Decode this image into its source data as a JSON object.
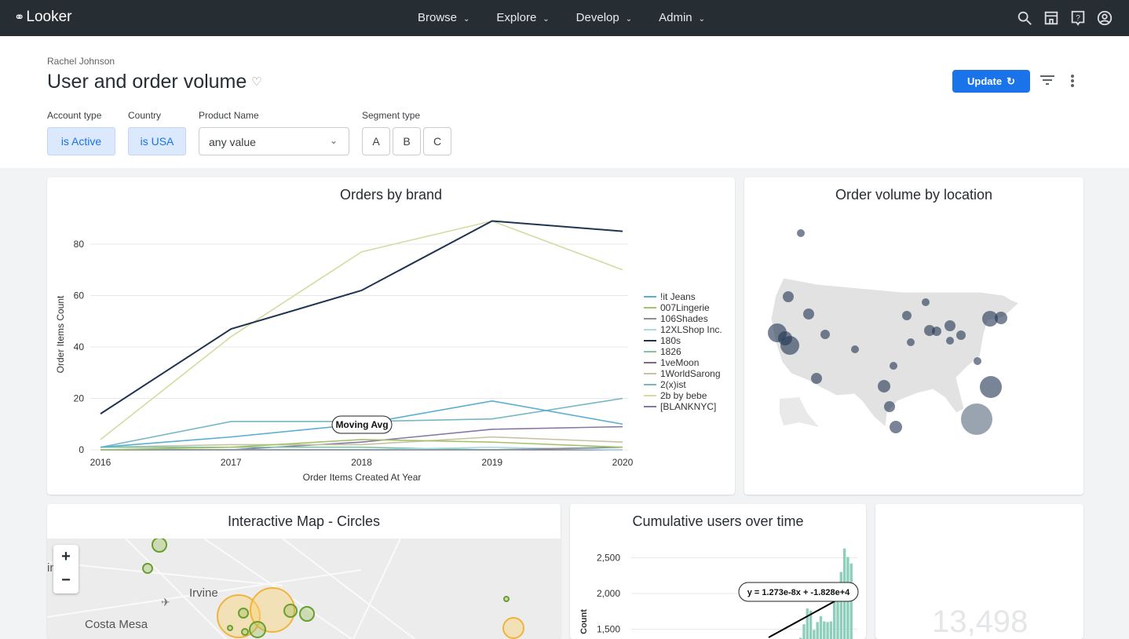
{
  "topbar": {
    "logo": "Looker",
    "nav": [
      {
        "label": "Browse"
      },
      {
        "label": "Explore"
      },
      {
        "label": "Develop"
      },
      {
        "label": "Admin"
      }
    ],
    "icons": [
      "search-icon",
      "marketplace-icon",
      "help-icon",
      "account-icon"
    ]
  },
  "header": {
    "owner": "Rachel Johnson",
    "title": "User and order volume",
    "update_label": "Update"
  },
  "filters": {
    "account_type": {
      "label": "Account type",
      "value": "is Active"
    },
    "country": {
      "label": "Country",
      "value": "is USA"
    },
    "product_name": {
      "label": "Product Name",
      "value": "any value"
    },
    "segment_type": {
      "label": "Segment type",
      "options": [
        "A",
        "B",
        "C"
      ]
    }
  },
  "tiles": {
    "orders_by_brand": {
      "title": "Orders by brand",
      "annotation": "Moving Avg"
    },
    "order_volume_by_location": {
      "title": "Order volume by location"
    },
    "interactive_map": {
      "title": "Interactive Map - Circles",
      "labels": [
        "Irvine",
        "Costa Mesa",
        "in    ley"
      ]
    },
    "cumulative_users": {
      "title": "Cumulative users over time",
      "trendline": "y = 1.273e-8x + -1.828e+4"
    },
    "single_value": {
      "value": "13,498"
    }
  },
  "chart_data": [
    {
      "type": "line",
      "title": "Orders by brand",
      "xlabel": "Order Items Created At Year",
      "ylabel": "Order Items Count",
      "categories": [
        "2016",
        "2017",
        "2018",
        "2019",
        "2020"
      ],
      "ylim": [
        0,
        90
      ],
      "yticks": [
        0,
        20,
        40,
        60,
        80
      ],
      "grid": true,
      "legend": "right",
      "series": [
        {
          "name": "!it Jeans",
          "color": "#5aaed3",
          "values": [
            1,
            5,
            10,
            19,
            10
          ]
        },
        {
          "name": "007Lingerie",
          "color": "#a5c26b",
          "values": [
            0,
            1,
            4,
            3,
            1
          ]
        },
        {
          "name": "106Shades",
          "color": "#8a8f96",
          "values": [
            0,
            0,
            0,
            0,
            1
          ]
        },
        {
          "name": "12XLShop Inc.",
          "color": "#a8dde6",
          "values": [
            0,
            0,
            0,
            1,
            0
          ]
        },
        {
          "name": "180s",
          "color": "#1f3450",
          "values": [
            14,
            47,
            62,
            89,
            85
          ]
        },
        {
          "name": "1826",
          "color": "#7fc4a5",
          "values": [
            1,
            1,
            1,
            0,
            1
          ]
        },
        {
          "name": "1veMoon",
          "color": "#7b6b86",
          "values": [
            0,
            0,
            0,
            0,
            0
          ]
        },
        {
          "name": "1WorldSarong",
          "color": "#c6c2a3",
          "values": [
            1,
            2,
            2,
            5,
            3
          ]
        },
        {
          "name": "2(x)ist",
          "color": "#76b7c6",
          "values": [
            1,
            11,
            11,
            12,
            20
          ]
        },
        {
          "name": "2b by bebe",
          "color": "#d4dba0",
          "values": [
            4,
            44,
            77,
            89,
            70
          ]
        },
        {
          "name": "[BLANKNYC]",
          "color": "#8577a8",
          "values": [
            0,
            0,
            3,
            8,
            9
          ]
        }
      ]
    },
    {
      "type": "bar",
      "title": "Cumulative users over time",
      "ylabel": "Count",
      "yticks": [
        "1,500",
        "2,000",
        "2,500"
      ],
      "ylim": [
        1300,
        2700
      ],
      "values": [
        1380,
        1570,
        1790,
        1760,
        1490,
        1600,
        1680,
        1610,
        1600,
        1610,
        1900,
        2000,
        2300,
        2630,
        2510,
        2420
      ],
      "color": "#8ecfbb"
    }
  ]
}
